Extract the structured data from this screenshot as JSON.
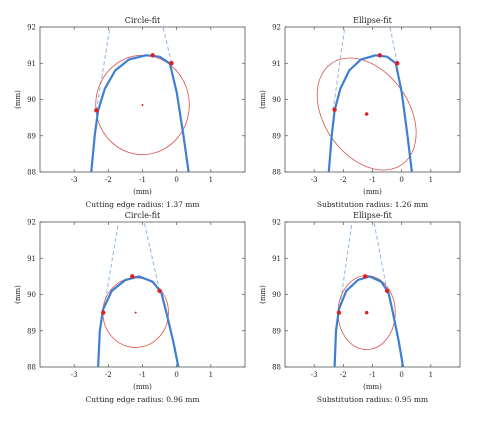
{
  "chart_data": [
    {
      "type": "line",
      "title": "Circle-fit",
      "xlabel": "(mm)",
      "ylabel": "(mm)",
      "caption": "Cutting edge radius: 1.37 mm",
      "xlim": [
        -4,
        2
      ],
      "ylim": [
        88,
        92
      ],
      "x_ticks": [
        -3,
        -2,
        -1,
        0,
        1
      ],
      "x_tick_labels": [
        "-3",
        "-2",
        "-1",
        "0",
        "1"
      ],
      "y_ticks": [
        88,
        89,
        90,
        91,
        92
      ],
      "y_tick_labels": [
        "88",
        "89",
        "90",
        "91",
        "92"
      ],
      "profile": [
        [
          -2.5,
          88.0
        ],
        [
          -2.4,
          89.0
        ],
        [
          -2.3,
          89.7
        ],
        [
          -2.1,
          90.3
        ],
        [
          -1.8,
          90.8
        ],
        [
          -1.4,
          91.1
        ],
        [
          -0.9,
          91.22
        ],
        [
          -0.5,
          91.18
        ],
        [
          -0.2,
          91.0
        ],
        [
          0.0,
          90.2
        ],
        [
          0.2,
          89.0
        ],
        [
          0.35,
          88.0
        ]
      ],
      "tangents": [
        [
          [
            -2.35,
            89.7
          ],
          [
            -1.95,
            92.0
          ]
        ],
        [
          [
            -0.15,
            91.0
          ],
          [
            -0.4,
            92.0
          ]
        ]
      ],
      "fit_shape": {
        "kind": "circle",
        "cx": -1.0,
        "cy": 89.85,
        "r": 1.37
      },
      "points": [
        [
          -2.35,
          89.7
        ],
        [
          -0.7,
          91.22
        ],
        [
          -0.15,
          91.0
        ]
      ],
      "center": [
        -1.0,
        89.85
      ]
    },
    {
      "type": "line",
      "title": "Ellipse-fit",
      "xlabel": "(mm)",
      "ylabel": "(mm)",
      "caption": "Substitution radius: 1.26 mm",
      "xlim": [
        -4,
        2
      ],
      "ylim": [
        88,
        92
      ],
      "x_ticks": [
        -3,
        -2,
        -1,
        0,
        1
      ],
      "x_tick_labels": [
        "-3",
        "-2",
        "-1",
        "0",
        "1"
      ],
      "y_ticks": [
        88,
        89,
        90,
        91,
        92
      ],
      "y_tick_labels": [
        "88",
        "89",
        "90",
        "91",
        "92"
      ],
      "profile": [
        [
          -2.5,
          88.0
        ],
        [
          -2.4,
          89.0
        ],
        [
          -2.3,
          89.7
        ],
        [
          -2.1,
          90.3
        ],
        [
          -1.8,
          90.8
        ],
        [
          -1.4,
          91.1
        ],
        [
          -0.9,
          91.22
        ],
        [
          -0.5,
          91.18
        ],
        [
          -0.2,
          91.0
        ],
        [
          0.0,
          90.2
        ],
        [
          0.2,
          89.0
        ],
        [
          0.35,
          88.0
        ]
      ],
      "tangents": [
        [
          [
            -2.35,
            89.7
          ],
          [
            -1.95,
            92.0
          ]
        ],
        [
          [
            -0.15,
            91.0
          ],
          [
            -0.4,
            92.0
          ]
        ]
      ],
      "fit_shape": {
        "kind": "ellipse",
        "cx": -1.2,
        "cy": 89.6,
        "rx": 1.45,
        "ry": 1.7,
        "rotation_deg": -35
      },
      "points": [
        [
          -2.3,
          89.72
        ],
        [
          -0.75,
          91.22
        ],
        [
          -0.15,
          91.0
        ]
      ],
      "center": [
        -1.2,
        89.6
      ]
    },
    {
      "type": "line",
      "title": "Circle-fit",
      "xlabel": "(mm)",
      "ylabel": "(mm)",
      "caption": "Cutting edge radius: 0.96 mm",
      "xlim": [
        -4,
        2
      ],
      "ylim": [
        88,
        92
      ],
      "x_ticks": [
        -3,
        -2,
        -1,
        0,
        1
      ],
      "x_tick_labels": [
        "-3",
        "-2",
        "-1",
        "0",
        "1"
      ],
      "y_ticks": [
        88,
        89,
        90,
        91,
        92
      ],
      "y_tick_labels": [
        "88",
        "89",
        "90",
        "91",
        "92"
      ],
      "profile": [
        [
          -2.3,
          88.0
        ],
        [
          -2.25,
          89.0
        ],
        [
          -2.15,
          89.6
        ],
        [
          -1.9,
          90.1
        ],
        [
          -1.5,
          90.4
        ],
        [
          -1.1,
          90.5
        ],
        [
          -0.7,
          90.35
        ],
        [
          -0.45,
          90.05
        ],
        [
          -0.3,
          89.5
        ],
        [
          -0.1,
          88.7
        ],
        [
          0.05,
          88.0
        ]
      ],
      "tangents": [
        [
          [
            -2.15,
            89.5
          ],
          [
            -1.7,
            92.0
          ]
        ],
        [
          [
            -0.5,
            90.1
          ],
          [
            -0.95,
            92.0
          ]
        ]
      ],
      "fit_shape": {
        "kind": "circle",
        "cx": -1.2,
        "cy": 89.5,
        "r": 0.96
      },
      "points": [
        [
          -2.15,
          89.5
        ],
        [
          -1.3,
          90.5
        ],
        [
          -0.5,
          90.1
        ]
      ],
      "center": [
        -1.2,
        89.5
      ]
    },
    {
      "type": "line",
      "title": "Ellipse-fit",
      "xlabel": "(mm)",
      "ylabel": "(mm)",
      "caption": "Substitution radius: 0.95 mm",
      "xlim": [
        -4,
        2
      ],
      "ylim": [
        88,
        92
      ],
      "x_ticks": [
        -3,
        -2,
        -1,
        0,
        1
      ],
      "x_tick_labels": [
        "-3",
        "-2",
        "-1",
        "0",
        "1"
      ],
      "y_ticks": [
        88,
        89,
        90,
        91,
        92
      ],
      "y_tick_labels": [
        "88",
        "89",
        "90",
        "91",
        "92"
      ],
      "profile": [
        [
          -2.3,
          88.0
        ],
        [
          -2.25,
          89.0
        ],
        [
          -2.15,
          89.6
        ],
        [
          -1.9,
          90.1
        ],
        [
          -1.5,
          90.4
        ],
        [
          -1.1,
          90.5
        ],
        [
          -0.7,
          90.35
        ],
        [
          -0.45,
          90.05
        ],
        [
          -0.3,
          89.5
        ],
        [
          -0.1,
          88.7
        ],
        [
          0.05,
          88.0
        ]
      ],
      "tangents": [
        [
          [
            -2.15,
            89.5
          ],
          [
            -1.7,
            92.0
          ]
        ],
        [
          [
            -0.5,
            90.1
          ],
          [
            -0.95,
            92.0
          ]
        ]
      ],
      "fit_shape": {
        "kind": "ellipse",
        "cx": -1.2,
        "cy": 89.5,
        "rx": 0.98,
        "ry": 1.02,
        "rotation_deg": 0
      },
      "points": [
        [
          -2.15,
          89.5
        ],
        [
          -1.25,
          90.5
        ],
        [
          -0.5,
          90.1
        ]
      ],
      "center": [
        -1.2,
        89.5
      ]
    }
  ],
  "colors": {
    "profile": "#3d7fd0",
    "tangent": "#8fb6e6",
    "fit": "#d9534f",
    "point": "#e02020",
    "axis": "#555555"
  }
}
